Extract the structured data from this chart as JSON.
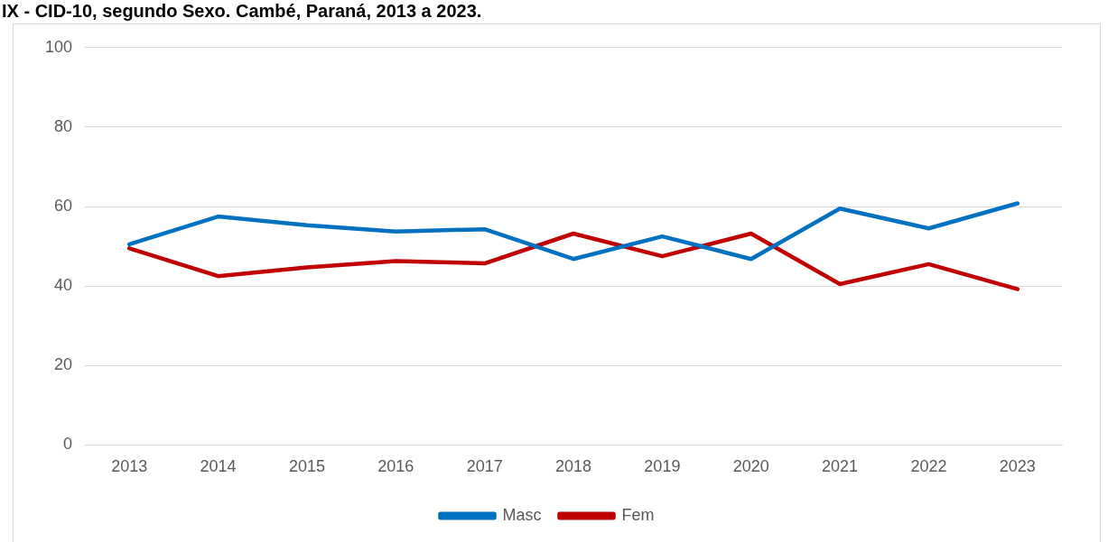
{
  "chart_data": {
    "type": "line",
    "title": "IX - CID-10, segundo Sexo. Cambé, Paraná, 2013 a 2023.",
    "categories": [
      "2013",
      "2014",
      "2015",
      "2016",
      "2017",
      "2018",
      "2019",
      "2020",
      "2021",
      "2022",
      "2023"
    ],
    "series": [
      {
        "name": "Masc",
        "color": "#0070c0",
        "values": [
          50.5,
          57.5,
          55.3,
          53.7,
          54.3,
          46.8,
          52.5,
          46.8,
          59.5,
          54.5,
          60.8
        ]
      },
      {
        "name": "Fem",
        "color": "#c00000",
        "values": [
          49.5,
          42.5,
          44.7,
          46.3,
          45.7,
          53.2,
          47.5,
          53.2,
          40.5,
          45.5,
          39.2
        ]
      }
    ],
    "ylim": [
      0,
      100
    ],
    "yticks": [
      0,
      20,
      40,
      60,
      80,
      100
    ],
    "grid": "y",
    "legend": "bottom",
    "marker": "none",
    "line_style": "solid"
  }
}
